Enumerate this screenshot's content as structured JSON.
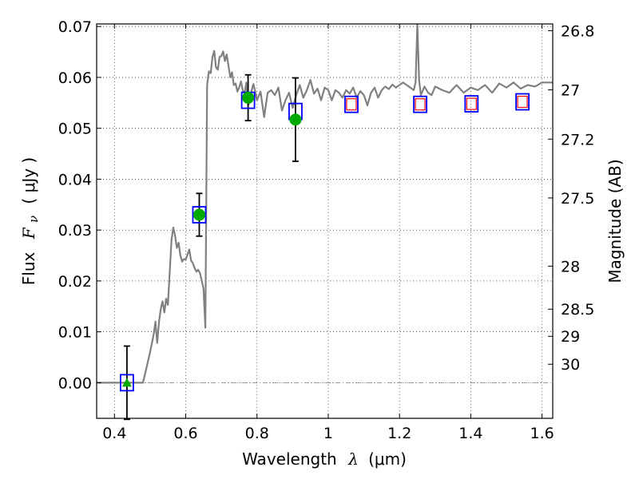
{
  "chart_data": {
    "type": "scatter",
    "xlabel": {
      "text": "Wavelength",
      "symbol": "λ",
      "unit": "(μm)"
    },
    "ylabel": {
      "text": "Flux",
      "symbol": "F",
      "subscript": "ν",
      "unit": "( μJy )"
    },
    "y2label": "Magnitude (AB)",
    "xlim": [
      0.35,
      1.63
    ],
    "ylim": [
      -0.007,
      0.0705
    ],
    "grid": true,
    "x_ticks": [
      0.4,
      0.6,
      0.8,
      1.0,
      1.2,
      1.4,
      1.6
    ],
    "x_tick_labels": [
      "0.4",
      "0.6",
      "0.8",
      "1",
      "1.2",
      "1.4",
      "1.6"
    ],
    "y_ticks": [
      0.0,
      0.01,
      0.02,
      0.03,
      0.04,
      0.05,
      0.06,
      0.07
    ],
    "y_tick_labels": [
      "0.00",
      "0.01",
      "0.02",
      "0.03",
      "0.04",
      "0.05",
      "0.06",
      "0.07"
    ],
    "y2_ticks": [
      26.8,
      27,
      27.2,
      27.5,
      28,
      28.5,
      29,
      30
    ],
    "y2_tick_labels": [
      "26.8",
      "27",
      "27.2",
      "27.5",
      "28",
      "28.5",
      "29",
      "30"
    ],
    "colors": {
      "spectrum": "#808080",
      "model_box": "#0000ff",
      "nondetection_box": "#ff0000",
      "observed": "#00aa00",
      "errorbar": "#000000",
      "zero_line": "#808080"
    },
    "series": [
      {
        "style": "line",
        "role": "spectrum",
        "x": [
          0.35,
          0.48,
          0.49,
          0.5,
          0.51,
          0.515,
          0.52,
          0.525,
          0.53,
          0.535,
          0.54,
          0.545,
          0.55,
          0.555,
          0.56,
          0.565,
          0.57,
          0.575,
          0.58,
          0.585,
          0.59,
          0.595,
          0.6,
          0.605,
          0.61,
          0.615,
          0.62,
          0.625,
          0.63,
          0.635,
          0.64,
          0.645,
          0.65,
          0.655,
          0.66,
          0.665,
          0.67,
          0.675,
          0.68,
          0.685,
          0.69,
          0.695,
          0.7,
          0.705,
          0.71,
          0.715,
          0.72,
          0.725,
          0.73,
          0.735,
          0.74,
          0.745,
          0.75,
          0.755,
          0.76,
          0.765,
          0.77,
          0.775,
          0.78,
          0.785,
          0.79,
          0.795,
          0.8,
          0.81,
          0.82,
          0.83,
          0.84,
          0.85,
          0.86,
          0.87,
          0.88,
          0.89,
          0.9,
          0.91,
          0.92,
          0.93,
          0.94,
          0.95,
          0.96,
          0.97,
          0.98,
          0.99,
          1.0,
          1.01,
          1.02,
          1.03,
          1.04,
          1.05,
          1.06,
          1.07,
          1.08,
          1.09,
          1.1,
          1.11,
          1.12,
          1.13,
          1.14,
          1.15,
          1.16,
          1.17,
          1.18,
          1.19,
          1.2,
          1.21,
          1.22,
          1.23,
          1.24,
          1.245,
          1.25,
          1.255,
          1.26,
          1.27,
          1.28,
          1.29,
          1.3,
          1.32,
          1.34,
          1.36,
          1.38,
          1.4,
          1.42,
          1.44,
          1.46,
          1.48,
          1.5,
          1.52,
          1.54,
          1.56,
          1.58,
          1.6,
          1.63
        ],
        "y": [
          0.0,
          0.0,
          0.003,
          0.006,
          0.0095,
          0.012,
          0.0078,
          0.012,
          0.0145,
          0.016,
          0.0138,
          0.0165,
          0.0153,
          0.0215,
          0.028,
          0.0305,
          0.029,
          0.0265,
          0.0275,
          0.025,
          0.0238,
          0.0243,
          0.0242,
          0.0252,
          0.0262,
          0.024,
          0.0235,
          0.0225,
          0.0218,
          0.0222,
          0.0215,
          0.02,
          0.0185,
          0.0108,
          0.0585,
          0.0612,
          0.0608,
          0.064,
          0.0652,
          0.062,
          0.0615,
          0.064,
          0.0642,
          0.0651,
          0.0632,
          0.0645,
          0.0622,
          0.06,
          0.061,
          0.0585,
          0.0588,
          0.0572,
          0.058,
          0.0592,
          0.0575,
          0.0568,
          0.059,
          0.0545,
          0.0552,
          0.0575,
          0.0587,
          0.0572,
          0.0555,
          0.0572,
          0.0522,
          0.057,
          0.0575,
          0.0565,
          0.058,
          0.0535,
          0.0555,
          0.057,
          0.054,
          0.0565,
          0.0585,
          0.056,
          0.0575,
          0.0595,
          0.0568,
          0.0578,
          0.0555,
          0.058,
          0.0575,
          0.0555,
          0.0575,
          0.057,
          0.056,
          0.0575,
          0.0568,
          0.058,
          0.056,
          0.0573,
          0.0565,
          0.0545,
          0.057,
          0.058,
          0.056,
          0.0575,
          0.0582,
          0.0577,
          0.0586,
          0.058,
          0.0585,
          0.059,
          0.0585,
          0.058,
          0.0575,
          0.059,
          0.0705,
          0.0595,
          0.0565,
          0.0582,
          0.057,
          0.0565,
          0.0582,
          0.0575,
          0.057,
          0.0585,
          0.057,
          0.058,
          0.0575,
          0.0585,
          0.057,
          0.0588,
          0.058,
          0.059,
          0.0578,
          0.0585,
          0.0582,
          0.059,
          0.059
        ]
      },
      {
        "style": "open-square",
        "role": "model",
        "color": "#0000ff",
        "x": [
          0.435,
          0.638,
          0.775,
          0.908,
          1.065,
          1.258,
          1.402,
          1.545
        ],
        "y": [
          0.0,
          0.033,
          0.0555,
          0.0533,
          0.0547,
          0.0547,
          0.0548,
          0.0552
        ]
      },
      {
        "style": "open-square-small",
        "role": "nondetection",
        "color": "#ff0000",
        "x": [
          1.065,
          1.258,
          1.402,
          1.545
        ],
        "y": [
          0.0547,
          0.0547,
          0.0548,
          0.0552
        ]
      },
      {
        "style": "filled-circle",
        "role": "observed",
        "color": "#00aa00",
        "x": [
          0.638,
          0.775,
          0.908
        ],
        "y": [
          0.033,
          0.056,
          0.0517
        ],
        "err": [
          0.0042,
          0.0045,
          0.0082
        ]
      },
      {
        "style": "filled-triangle",
        "role": "observed-limit",
        "color": "#00aa00",
        "x": [
          0.435
        ],
        "y": [
          0.0
        ],
        "err": [
          0.0072
        ]
      }
    ]
  }
}
